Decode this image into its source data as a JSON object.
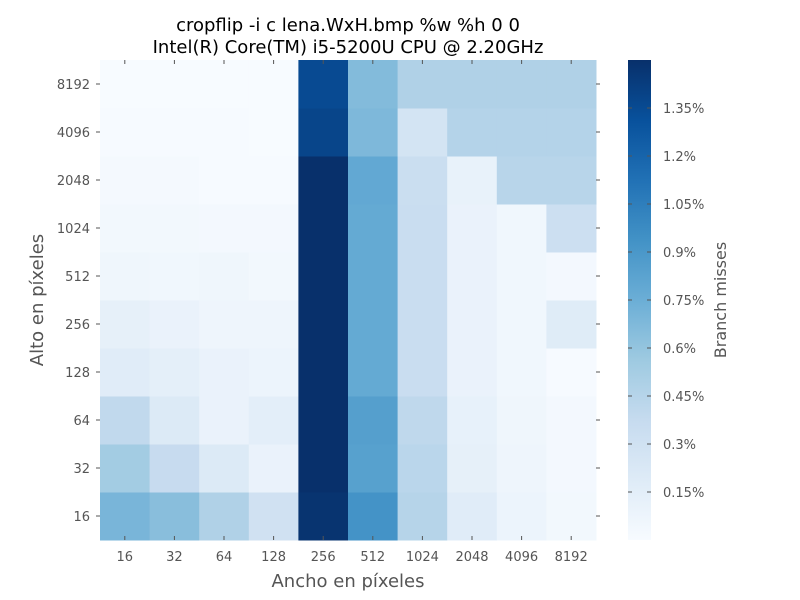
{
  "chart_data": {
    "type": "heatmap",
    "title_lines": [
      "cropflip -i c lena.WxH.bmp %w %h 0 0",
      "Intel(R) Core(TM) i5-5200U CPU @ 2.20GHz"
    ],
    "xlabel": "Ancho en píxeles",
    "ylabel": "Alto en píxeles",
    "x_categories": [
      "16",
      "32",
      "64",
      "128",
      "256",
      "512",
      "1024",
      "2048",
      "4096",
      "8192"
    ],
    "y_categories": [
      "16",
      "32",
      "64",
      "128",
      "256",
      "512",
      "1024",
      "2048",
      "4096",
      "8192"
    ],
    "values": [
      [
        0.7,
        0.64,
        0.48,
        0.3,
        1.48,
        0.93,
        0.45,
        0.17,
        0.08,
        0.04
      ],
      [
        0.54,
        0.37,
        0.2,
        0.1,
        1.58,
        0.84,
        0.43,
        0.13,
        0.07,
        0.03
      ],
      [
        0.4,
        0.2,
        0.1,
        0.15,
        1.57,
        0.85,
        0.41,
        0.12,
        0.06,
        0.03
      ],
      [
        0.17,
        0.14,
        0.1,
        0.08,
        1.57,
        0.78,
        0.35,
        0.1,
        0.05,
        0.01
      ],
      [
        0.13,
        0.1,
        0.07,
        0.07,
        1.57,
        0.78,
        0.35,
        0.1,
        0.05,
        0.18
      ],
      [
        0.06,
        0.05,
        0.06,
        0.04,
        1.56,
        0.78,
        0.35,
        0.1,
        0.05,
        0.03
      ],
      [
        0.04,
        0.04,
        0.03,
        0.03,
        1.56,
        0.78,
        0.35,
        0.1,
        0.05,
        0.33
      ],
      [
        0.02,
        0.02,
        0.01,
        0.01,
        1.56,
        0.79,
        0.34,
        0.11,
        0.44,
        0.44
      ],
      [
        0.01,
        0.01,
        0.01,
        0.0,
        1.38,
        0.68,
        0.27,
        0.46,
        0.46,
        0.46
      ],
      [
        0.0,
        0.0,
        0.0,
        0.0,
        1.35,
        0.66,
        0.48,
        0.48,
        0.48,
        0.48
      ]
    ],
    "value_range": [
      0.0,
      1.5
    ],
    "colormap": [
      "#f7fbff",
      "#deebf7",
      "#c6dbef",
      "#9ecae1",
      "#6baed6",
      "#4292c6",
      "#2171b5",
      "#08519c",
      "#08306b"
    ],
    "colorbar": {
      "label": "Branch misses",
      "ticks": [
        0.15,
        0.3,
        0.45,
        0.6,
        0.75,
        0.9,
        1.05,
        1.2,
        1.35
      ],
      "tick_labels": [
        "0.15%",
        "0.3%",
        "0.45%",
        "0.6%",
        "0.75%",
        "0.9%",
        "1.05%",
        "1.2%",
        "1.35%"
      ]
    },
    "grid": false
  }
}
